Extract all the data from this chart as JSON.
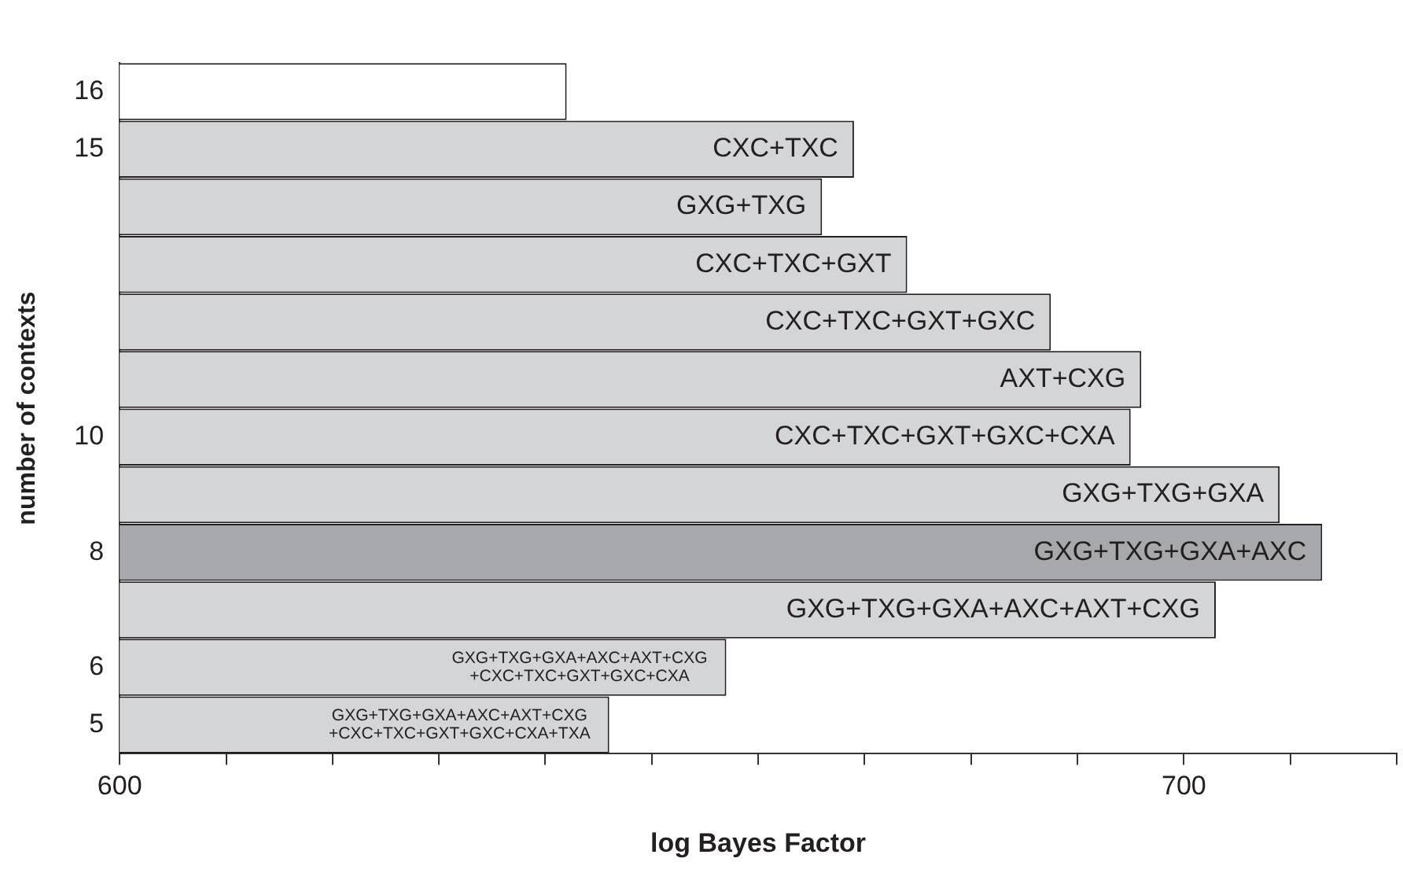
{
  "chart_data": {
    "type": "bar",
    "orientation": "horizontal",
    "xlabel": "log Bayes Factor",
    "ylabel": "number of contexts",
    "categories": [
      "16",
      "15",
      null,
      null,
      null,
      null,
      "10",
      null,
      "8",
      null,
      "6",
      "5"
    ],
    "values": [
      642,
      669,
      666,
      674,
      687.5,
      696,
      695,
      709,
      713,
      703,
      657,
      646
    ],
    "colors": [
      "#ffffff",
      "#d4d5d7",
      "#d4d5d7",
      "#d4d5d7",
      "#d4d5d7",
      "#d4d5d7",
      "#d4d5d7",
      "#d4d5d7",
      "#a7a8ab",
      "#d4d5d7",
      "#d4d5d7",
      "#d4d5d7"
    ],
    "value_labels": [
      null,
      "CXC+TXC",
      "GXG+TXG",
      "CXC+TXC+GXT",
      "CXC+TXC+GXT+GXC",
      "AXT+CXG",
      "CXC+TXC+GXT+GXC+CXA",
      "GXG+TXG+GXA",
      "GXG+TXG+GXA+AXC",
      "GXG+TXG+GXA+AXC+AXT+CXG",
      "GXG+TXG+GXA+AXC+AXT+CXG\n+CXC+TXC+GXT+GXC+CXA",
      "GXG+TXG+GXA+AXC+AXT+CXG\n+CXC+TXC+GXT+GXC+CXA+TXA"
    ],
    "xlim": [
      600,
      720
    ],
    "xticks": [
      600,
      {
        "value": 610,
        "label": null
      },
      {
        "value": 620,
        "label": null
      },
      {
        "value": 630,
        "label": null
      },
      {
        "value": 640,
        "label": null
      },
      {
        "value": 650,
        "label": null
      },
      {
        "value": 660,
        "label": null
      },
      {
        "value": 670,
        "label": null
      },
      {
        "value": 680,
        "label": null
      },
      {
        "value": 690,
        "label": null
      },
      700,
      {
        "value": 710,
        "label": null
      },
      {
        "value": 720,
        "label": null
      }
    ],
    "grid": false,
    "legend": false
  }
}
